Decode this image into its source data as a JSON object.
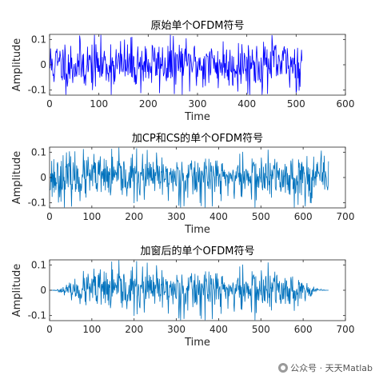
{
  "chart_data": [
    {
      "type": "line",
      "title": "原始单个OFDM符号",
      "xlabel": "Time",
      "ylabel": "Amplitude",
      "xlim": [
        0,
        600
      ],
      "ylim": [
        -0.12,
        0.12
      ],
      "xticks": [
        0,
        100,
        200,
        300,
        400,
        500,
        600
      ],
      "yticks": [
        -0.1,
        0,
        0.1
      ],
      "color": "#0000ff",
      "length": 512,
      "envelope": "none",
      "seed": 11,
      "amplitude": 0.05
    },
    {
      "type": "line",
      "title": "加CP和CS的单个OFDM符号",
      "xlabel": "Time",
      "ylabel": "Amplitude",
      "xlim": [
        0,
        700
      ],
      "ylim": [
        -0.12,
        0.12
      ],
      "xticks": [
        0,
        100,
        200,
        300,
        400,
        500,
        600,
        700
      ],
      "yticks": [
        -0.1,
        0,
        0.1
      ],
      "color": "#0072bd",
      "length": 660,
      "envelope": "none",
      "seed": 23,
      "amplitude": 0.045
    },
    {
      "type": "line",
      "title": "加窗后的单个OFDM符号",
      "xlabel": "Time",
      "ylabel": "Amplitude",
      "xlim": [
        0,
        700
      ],
      "ylim": [
        -0.12,
        0.12
      ],
      "xticks": [
        0,
        100,
        200,
        300,
        400,
        500,
        600,
        700
      ],
      "yticks": [
        -0.1,
        0,
        0.1
      ],
      "color": "#0072bd",
      "length": 660,
      "envelope": "taper",
      "seed": 23,
      "amplitude": 0.045
    }
  ],
  "watermark": {
    "icon": "wechat-icon",
    "text": "公众号 · 天天Matlab"
  }
}
